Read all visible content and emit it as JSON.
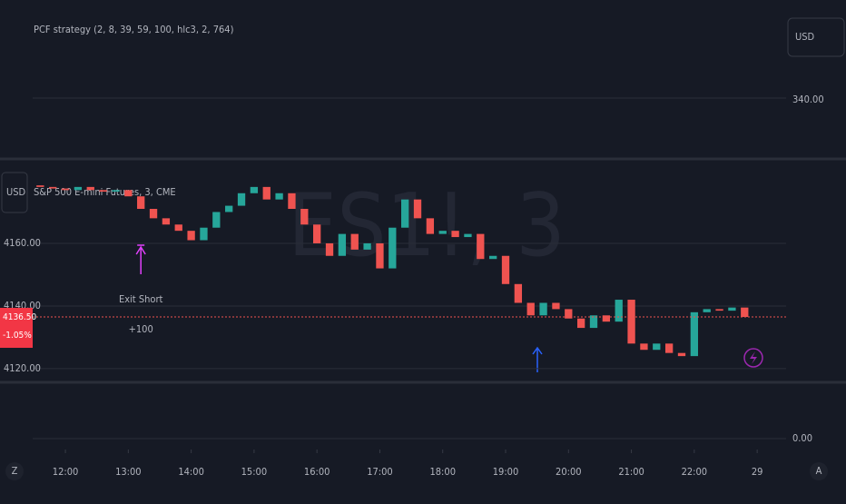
{
  "strategy_pane": {
    "label": "PCF strategy (2, 8, 39, 59, 100, hlc3, 2, 764)",
    "currency": "USD",
    "ytick": {
      "value": 340,
      "label": "340.00"
    }
  },
  "chart_data": {
    "type": "candlestick",
    "title": "S&P 500 E-mini Futures, 3, CME",
    "currency": "USD",
    "watermark": "ES1!, 3",
    "x": [
      11.6,
      11.8,
      12.0,
      12.2,
      12.4,
      12.6,
      12.8,
      13.0,
      13.2,
      13.4,
      13.6,
      13.8,
      14.0,
      14.2,
      14.4,
      14.6,
      14.8,
      15.0,
      15.2,
      15.4,
      15.6,
      15.8,
      16.0,
      16.2,
      16.4,
      16.6,
      16.8,
      17.0,
      17.2,
      17.4,
      17.6,
      17.8,
      18.0,
      18.2,
      18.4,
      18.6,
      18.8,
      19.0,
      19.2,
      19.4,
      19.6,
      19.8,
      20.0,
      20.2,
      20.4,
      20.6,
      20.8,
      21.0,
      21.2,
      21.4,
      21.6,
      21.8,
      22.0,
      22.2,
      22.4,
      22.6,
      22.8
    ],
    "open": [
      4178.5,
      4178,
      4177.5,
      4177,
      4178,
      4177,
      4176.5,
      4177,
      4175,
      4171,
      4168,
      4166,
      4164,
      4161,
      4165,
      4170,
      4172,
      4176,
      4178,
      4174,
      4176,
      4171,
      4166,
      4160,
      4156,
      4163,
      4158,
      4160,
      4152,
      4165,
      4174,
      4168,
      4163,
      4164,
      4162,
      4163,
      4155,
      4156,
      4147,
      4141,
      4137,
      4141,
      4139,
      4136,
      4133,
      4137,
      4135,
      4142,
      4128,
      4126,
      4128,
      4125,
      4124,
      4138,
      4139,
      4138.5,
      4139.5
    ],
    "close": [
      4178,
      4177.5,
      4177,
      4178,
      4177,
      4176.5,
      4177,
      4175,
      4171,
      4168,
      4166,
      4164,
      4161,
      4165,
      4170,
      4172,
      4176,
      4178,
      4174,
      4176,
      4171,
      4166,
      4160,
      4156,
      4163,
      4158,
      4160,
      4152,
      4165,
      4174,
      4168,
      4163,
      4164,
      4162,
      4163,
      4155,
      4156,
      4147,
      4141,
      4137,
      4141,
      4139,
      4136,
      4133,
      4137,
      4135,
      4142,
      4128,
      4126,
      4128,
      4125,
      4124,
      4138,
      4139,
      4138.5,
      4139.5,
      4136.5
    ],
    "up_color": "#26a69a",
    "down_color": "#ef5350",
    "xlim": [
      10.96,
      23.46
    ],
    "xticks": [
      {
        "value": 12,
        "label": "12:00"
      },
      {
        "value": 13,
        "label": "13:00"
      },
      {
        "value": 14,
        "label": "14:00"
      },
      {
        "value": 15,
        "label": "15:00"
      },
      {
        "value": 16,
        "label": "16:00"
      },
      {
        "value": 17,
        "label": "17:00"
      },
      {
        "value": 18,
        "label": "18:00"
      },
      {
        "value": 19,
        "label": "19:00"
      },
      {
        "value": 20,
        "label": "20:00"
      },
      {
        "value": 21,
        "label": "21:00"
      },
      {
        "value": 22,
        "label": "22:00"
      },
      {
        "value": 23,
        "label": "29"
      }
    ],
    "ylim": [
      4116.5,
      4185.5
    ],
    "yticks": [
      {
        "value": 4160,
        "label": "4160.00"
      },
      {
        "value": 4140,
        "label": "4140.00"
      },
      {
        "value": 4120,
        "label": "4120.00"
      }
    ],
    "last_price": {
      "value": 4136.5,
      "label": "4136.50"
    },
    "change": "-1.05%",
    "annotations": [
      {
        "text": "Exit Short",
        "x": 13.2
      },
      {
        "text": "+100",
        "x": 13.2
      }
    ]
  },
  "lower_pane": {
    "ytick": {
      "value": 0,
      "label": "0.00"
    }
  },
  "toolbar": {
    "left": "Z",
    "right": "A"
  }
}
